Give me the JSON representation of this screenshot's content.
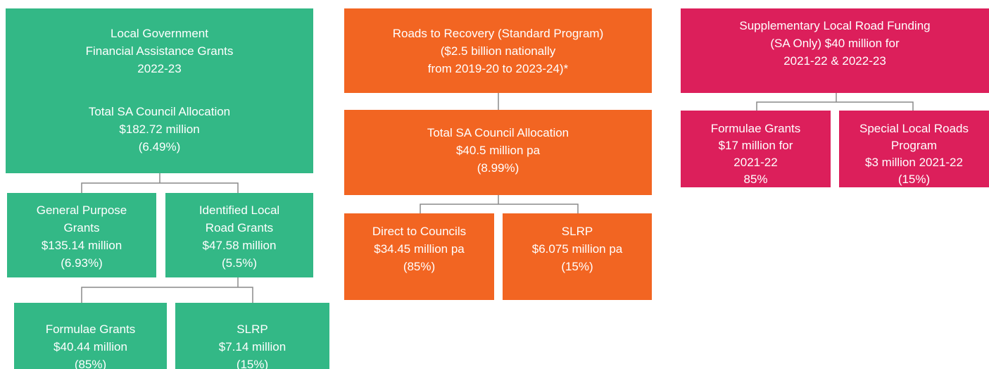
{
  "nodes": [
    {
      "lines": [
        "Local Government",
        "Financial Assistance Grants",
        "2022-23"
      ],
      "detail": [
        "Total SA Council Allocation",
        "$182.72 million",
        "(6.49%)"
      ]
    },
    {
      "lines": [
        "General Purpose",
        "Grants",
        "$135.14 million",
        "(6.93%)"
      ]
    },
    {
      "lines": [
        "Identified Local",
        "Road Grants",
        "$47.58 million",
        "(5.5%)"
      ]
    },
    {
      "lines": [
        "Formulae Grants",
        "$40.44 million",
        "(85%)"
      ]
    },
    {
      "lines": [
        "SLRP",
        "$7.14 million",
        "(15%)"
      ]
    },
    {
      "lines": [
        "Roads to Recovery (Standard Program)",
        "($2.5 billion nationally",
        "from 2019-20 to 2023-24)*"
      ]
    },
    {
      "lines": [
        "Total SA Council Allocation",
        "$40.5 million pa",
        "(8.99%)"
      ]
    },
    {
      "lines": [
        "Direct to Councils",
        "$34.45 million pa",
        "(85%)"
      ]
    },
    {
      "lines": [
        "SLRP",
        "$6.075 million pa",
        "(15%)"
      ]
    },
    {
      "lines": [
        "Supplementary Local Road Funding",
        "(SA Only) $40 million for",
        "2021-22 & 2022-23"
      ]
    },
    {
      "lines": [
        "Formulae Grants",
        "$17 million for",
        "2021-22",
        "85%"
      ]
    },
    {
      "lines": [
        "Special Local Roads",
        "Program",
        "$3 million 2021-22",
        "(15%)"
      ]
    }
  ]
}
